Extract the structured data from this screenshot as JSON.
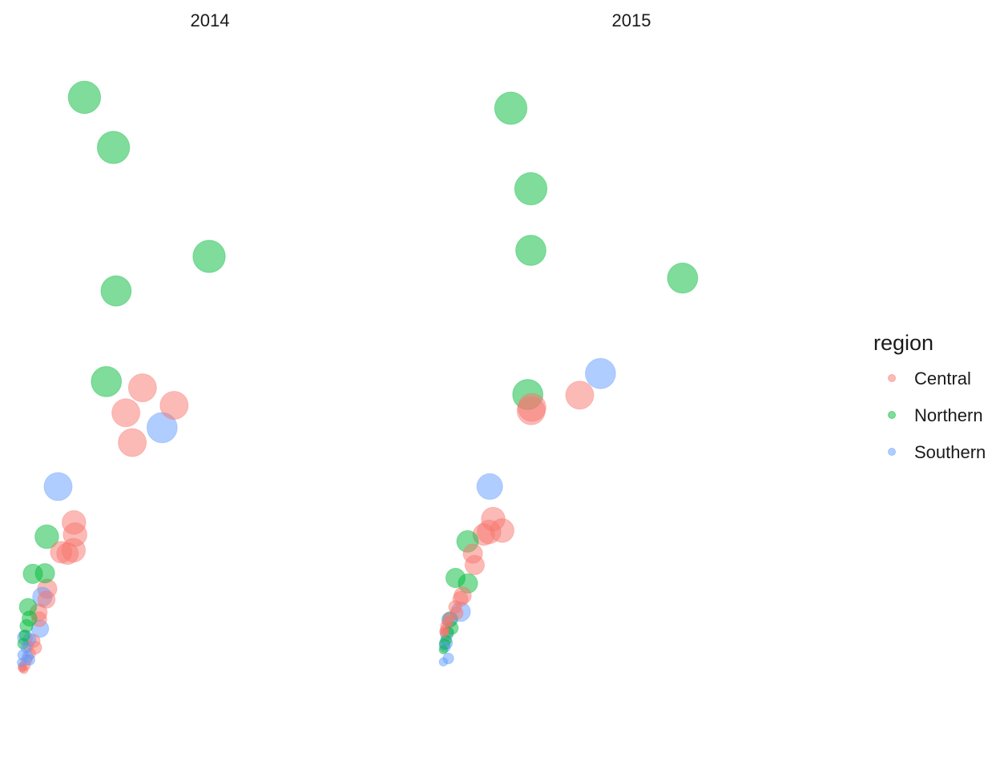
{
  "chart_data": {
    "type": "scatter",
    "panels": [
      "2014",
      "2015"
    ],
    "legend": {
      "title": "region",
      "position": "right",
      "entries": [
        {
          "name": "Central",
          "color": "#F8766D"
        },
        {
          "name": "Northern",
          "color": "#00BA38"
        },
        {
          "name": "Southern",
          "color": "#619CFF"
        }
      ]
    },
    "axes": {
      "shown": false,
      "grid": false
    },
    "point_opacity": 0.5,
    "xlim": [
      0,
      100
    ],
    "ylim": [
      0,
      100
    ],
    "series": [
      {
        "name": "Central",
        "panels": {
          "2014": [
            [
              32.3,
              51.0,
              10
            ],
            [
              40.7,
              48.4,
              10
            ],
            [
              27.9,
              47.3,
              10
            ],
            [
              29.6,
              42.9,
              10
            ],
            [
              14.1,
              31.1,
              8
            ],
            [
              14.4,
              29.3,
              8
            ],
            [
              14.0,
              27.0,
              8
            ],
            [
              10.7,
              26.7,
              7
            ],
            [
              12.4,
              26.5,
              7
            ],
            [
              7.0,
              21.3,
              6
            ],
            [
              6.8,
              19.7,
              5
            ],
            [
              4.7,
              17.8,
              5
            ],
            [
              4.9,
              16.8,
              4
            ],
            [
              3.4,
              13.6,
              3
            ],
            [
              3.8,
              12.6,
              3
            ],
            [
              2.0,
              12.8,
              2
            ],
            [
              2.5,
              11.7,
              2
            ],
            [
              1.6,
              10.8,
              2
            ],
            [
              1.1,
              10.0,
              2
            ],
            [
              0.4,
              9.8,
              1
            ],
            [
              0.4,
              9.6,
              1
            ],
            [
              0.8,
              9.4,
              1
            ]
          ],
          "2015": [
            [
              36.5,
              49.9,
              10
            ],
            [
              23.8,
              48.1,
              10
            ],
            [
              23.6,
              47.6,
              10
            ],
            [
              13.5,
              31.6,
              8
            ],
            [
              15.9,
              29.9,
              8
            ],
            [
              12.4,
              29.7,
              8
            ],
            [
              11.0,
              29.3,
              7
            ],
            [
              8.1,
              26.5,
              6
            ],
            [
              8.6,
              24.8,
              6
            ],
            [
              5.4,
              20.3,
              5
            ],
            [
              4.8,
              19.8,
              4
            ],
            [
              3.4,
              18.6,
              3
            ],
            [
              3.8,
              17.7,
              3
            ],
            [
              1.8,
              17.0,
              2
            ],
            [
              1.5,
              16.4,
              2
            ],
            [
              1.0,
              15.8,
              2
            ],
            [
              0.6,
              15.3,
              1
            ],
            [
              0.4,
              15.0,
              1
            ],
            [
              0.6,
              14.8,
              1
            ]
          ]
        }
      },
      {
        "name": "Northern",
        "panels": {
          "2014": [
            [
              16.9,
              93.9,
              12
            ],
            [
              24.6,
              86.5,
              12
            ],
            [
              50.0,
              70.4,
              12
            ],
            [
              25.3,
              65.3,
              11
            ],
            [
              22.7,
              51.9,
              11
            ],
            [
              6.9,
              29.0,
              8
            ],
            [
              6.4,
              23.6,
              6
            ],
            [
              3.2,
              23.5,
              6
            ],
            [
              1.9,
              18.6,
              5
            ],
            [
              2.3,
              16.9,
              4
            ],
            [
              1.5,
              15.8,
              3
            ],
            [
              1.0,
              14.4,
              2
            ],
            [
              0.6,
              13.2,
              2
            ]
          ],
          "2015": [
            [
              18.2,
              92.3,
              12
            ],
            [
              23.5,
              80.4,
              12
            ],
            [
              23.5,
              71.3,
              11
            ],
            [
              63.8,
              67.2,
              11
            ],
            [
              22.7,
              50.0,
              11
            ],
            [
              6.7,
              28.3,
              7
            ],
            [
              3.5,
              22.9,
              6
            ],
            [
              6.8,
              22.1,
              6
            ],
            [
              2.1,
              16.8,
              4
            ],
            [
              2.5,
              15.5,
              3
            ],
            [
              1.6,
              14.9,
              2
            ],
            [
              1.0,
              13.7,
              2
            ],
            [
              0.6,
              13.1,
              2
            ],
            [
              0.3,
              12.3,
              1
            ]
          ]
        }
      },
      {
        "name": "Southern",
        "panels": {
          "2014": [
            [
              37.5,
              45.1,
              11
            ],
            [
              9.9,
              36.4,
              10
            ],
            [
              5.7,
              20.1,
              6
            ],
            [
              5.1,
              15.4,
              5
            ],
            [
              1.1,
              14.1,
              4
            ],
            [
              2.3,
              13.8,
              3
            ],
            [
              1.4,
              12.6,
              2
            ],
            [
              0.6,
              11.5,
              2
            ],
            [
              1.8,
              11.3,
              2
            ],
            [
              0.2,
              10.4,
              1
            ],
            [
              2.3,
              10.8,
              2
            ]
          ],
          "2015": [
            [
              42.0,
              53.1,
              11
            ],
            [
              12.6,
              36.4,
              9
            ],
            [
              4.9,
              17.9,
              6
            ],
            [
              1.8,
              16.7,
              4
            ],
            [
              1.2,
              14.6,
              3
            ],
            [
              1.0,
              13.3,
              3
            ],
            [
              0.7,
              12.7,
              2
            ],
            [
              1.6,
              11.0,
              2
            ],
            [
              0.3,
              10.5,
              1
            ]
          ]
        }
      }
    ]
  }
}
